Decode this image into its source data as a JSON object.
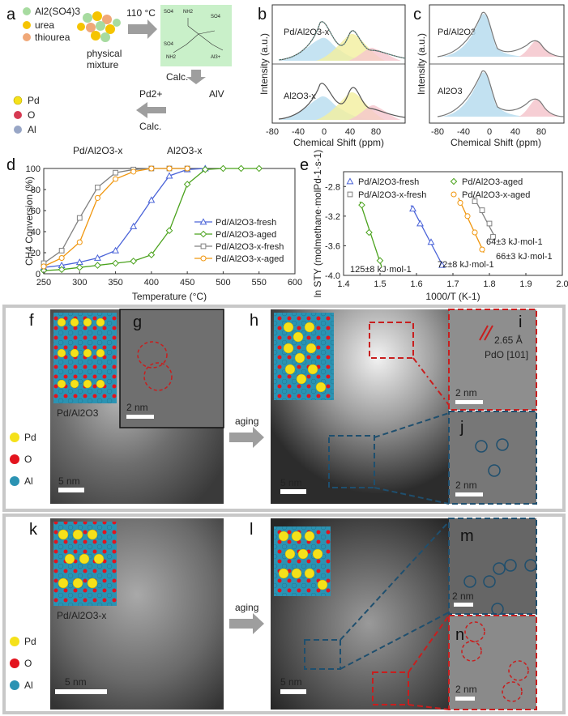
{
  "panel_labels": {
    "a": "a",
    "b": "b",
    "c": "c",
    "d": "d",
    "e": "e",
    "f": "f",
    "g": "g",
    "h": "h",
    "i": "i",
    "j": "j",
    "k": "k",
    "l": "l",
    "m": "m",
    "n": "n"
  },
  "panel_a": {
    "reagents": [
      "Al2(SO4)3",
      "urea",
      "thiourea"
    ],
    "physical_mixture": "physical mixture",
    "temperature": "110 °C",
    "calc_down": "Calc.",
    "calc_left": "Calc.",
    "pd_ion": "Pd2+",
    "al_v": "AlV",
    "legend": [
      "Pd",
      "O",
      "Al"
    ],
    "product_left": "Pd/Al2O3-x",
    "product_right": "Al2O3-x",
    "complex_labels": [
      "SO4",
      "NH2",
      "Al3+"
    ]
  },
  "panel_b": {
    "top_label": "Pd/Al2O3-x",
    "bottom_label": "Al2O3-x",
    "ylabel": "Intensity (a.u.)",
    "xlabel": "Chemical Shift (ppm)",
    "ticks": [
      "-80",
      "-40",
      "0",
      "40",
      "80"
    ]
  },
  "panel_c": {
    "top_label": "Pd/Al2O3",
    "bottom_label": "Al2O3",
    "ylabel": "Intensity (a.u.)",
    "xlabel": "Chemical Shift (ppm)",
    "ticks": [
      "-80",
      "-40",
      "0",
      "40",
      "80"
    ]
  },
  "chart_data": [
    {
      "type": "line",
      "panel": "d",
      "xlabel": "Temperature (°C)",
      "ylabel": "CH4 Conversion (%)",
      "xlim": [
        250,
        600
      ],
      "ylim": [
        0,
        100
      ],
      "xticks": [
        250,
        300,
        350,
        400,
        450,
        500,
        550,
        600
      ],
      "yticks": [
        0,
        20,
        40,
        60,
        80,
        100
      ],
      "legend_position": "right",
      "series": [
        {
          "name": "Pd/Al2O3-fresh",
          "color": "#4a63d8",
          "marker": "triangle",
          "x": [
            250,
            275,
            300,
            325,
            350,
            375,
            400,
            425,
            450,
            475
          ],
          "y": [
            6,
            8,
            11,
            15,
            22,
            45,
            70,
            93,
            99,
            100
          ]
        },
        {
          "name": "Pd/Al2O3-aged",
          "color": "#4aa21c",
          "marker": "diamond",
          "x": [
            250,
            275,
            300,
            325,
            350,
            375,
            400,
            425,
            450,
            475,
            500,
            525,
            550
          ],
          "y": [
            3,
            4,
            6,
            8,
            10,
            12,
            18,
            41,
            85,
            99,
            100,
            100,
            100
          ]
        },
        {
          "name": "Pd/Al2O3-x-fresh",
          "color": "#808080",
          "marker": "square",
          "x": [
            250,
            275,
            300,
            325,
            350,
            375,
            400,
            425,
            450
          ],
          "y": [
            10,
            22,
            53,
            82,
            96,
            99,
            100,
            100,
            100
          ]
        },
        {
          "name": "Pd/Al2O3-x-aged",
          "color": "#f0960e",
          "marker": "circle",
          "x": [
            250,
            275,
            300,
            325,
            350,
            375,
            400,
            425,
            450
          ],
          "y": [
            7,
            15,
            30,
            72,
            90,
            97,
            100,
            100,
            100
          ]
        }
      ]
    },
    {
      "type": "scatter",
      "panel": "e",
      "xlabel": "1000/T (K-1)",
      "ylabel": "ln STY (molmethane·molPd-1·s-1)",
      "xlim": [
        1.4,
        2.0
      ],
      "ylim": [
        -4.0,
        -2.6
      ],
      "xticks": [
        1.4,
        1.5,
        1.6,
        1.7,
        1.8,
        1.9,
        2.0
      ],
      "yticks": [
        -4.0,
        -3.6,
        -3.2,
        -2.8
      ],
      "legend_position": "top",
      "series": [
        {
          "name": "Pd/Al2O3-fresh",
          "color": "#4a63d8",
          "marker": "triangle",
          "x": [
            1.59,
            1.61,
            1.64,
            1.67
          ],
          "y": [
            -3.1,
            -3.3,
            -3.55,
            -3.86
          ],
          "annotation": "72±8 kJ·mol-1"
        },
        {
          "name": "Pd/Al2O3-aged",
          "color": "#4aa21c",
          "marker": "diamond",
          "x": [
            1.45,
            1.47,
            1.5
          ],
          "y": [
            -3.05,
            -3.42,
            -3.8
          ],
          "annotation": "125±8 kJ·mol-1"
        },
        {
          "name": "Pd/Al2O3-x-fresh",
          "color": "#808080",
          "marker": "square",
          "x": [
            1.76,
            1.78,
            1.8,
            1.81
          ],
          "y": [
            -3.0,
            -3.12,
            -3.3,
            -3.48
          ],
          "annotation": "64±3 kJ·mol-1"
        },
        {
          "name": "Pd/Al2O3-x-aged",
          "color": "#f0960e",
          "marker": "circle",
          "x": [
            1.72,
            1.74,
            1.76,
            1.78
          ],
          "y": [
            -3.02,
            -3.2,
            -3.42,
            -3.65
          ],
          "annotation": "66±3 kJ·mol-1"
        }
      ]
    }
  ],
  "micrographs": {
    "legend": [
      "Pd",
      "O",
      "Al"
    ],
    "aging": "aging",
    "f_caption": "Pd/Al2O3",
    "k_caption": "Pd/Al2O3-x",
    "scale_5nm": "5 nm",
    "scale_2nm": "2 nm",
    "d_spacing": "2.65 Å",
    "plane": "PdO [101]"
  },
  "colors": {
    "pd": "#f5e11a",
    "o": "#e3141e",
    "al": "#2b93b3",
    "red_dash": "#c81e1e",
    "blue_dash": "#1f4f6e"
  }
}
